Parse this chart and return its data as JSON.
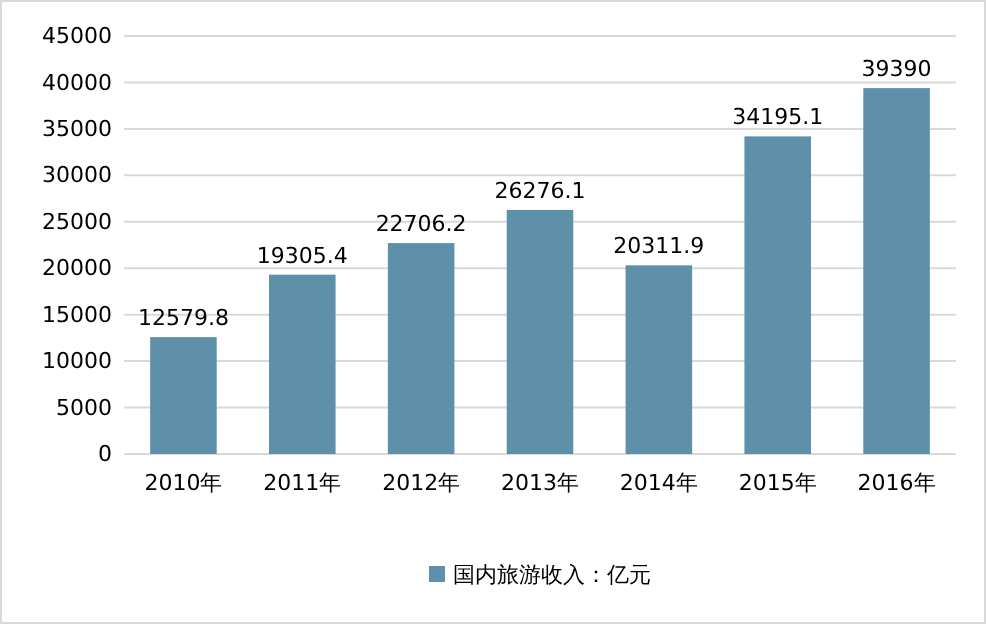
{
  "chart_data": {
    "type": "bar",
    "categories": [
      "2010年",
      "2011年",
      "2012年",
      "2013年",
      "2014年",
      "2015年",
      "2016年"
    ],
    "series": [
      {
        "name": "国内旅游收入：亿元",
        "color": "#5e91a9",
        "values": [
          12579.8,
          19305.4,
          22706.2,
          26276.1,
          20311.9,
          34195.1,
          39390
        ]
      }
    ],
    "ylim": [
      0,
      45000
    ],
    "yticks": [
      0,
      5000,
      10000,
      15000,
      20000,
      25000,
      30000,
      35000,
      40000,
      45000
    ],
    "grid": "y",
    "legend": "bottom",
    "data_labels": true
  }
}
